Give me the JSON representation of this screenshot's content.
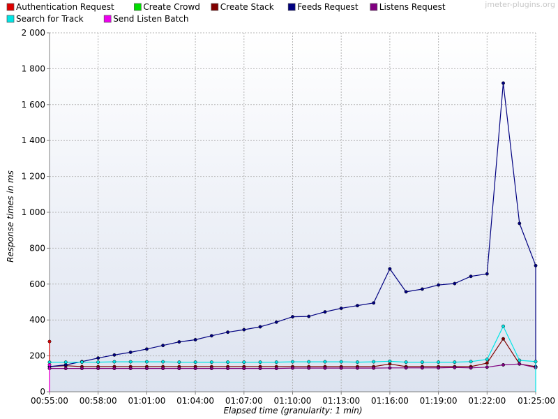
{
  "watermark": "jmeter-plugins.org",
  "chart_data": {
    "type": "line",
    "title": "",
    "xlabel": "Elapsed time (granularity: 1 min)",
    "ylabel": "Response times in ms",
    "ylim": [
      0,
      2000
    ],
    "y_ticks": [
      0,
      200,
      400,
      600,
      800,
      1000,
      1200,
      1400,
      1600,
      1800,
      2000
    ],
    "y_tick_labels": [
      "0",
      "200",
      "400",
      "600",
      "800",
      "1 000",
      "1 200",
      "1 400",
      "1 600",
      "1 800",
      "2 000"
    ],
    "x_range_min": [
      55,
      85
    ],
    "x_ticks": [
      55,
      58,
      61,
      64,
      67,
      70,
      73,
      76,
      79,
      82,
      85
    ],
    "x_tick_labels": [
      "00:55:00",
      "00:58:00",
      "01:01:00",
      "01:04:00",
      "01:07:00",
      "01:10:00",
      "01:13:00",
      "01:16:00",
      "01:19:00",
      "01:22:00",
      "01:25:00"
    ],
    "grid": true,
    "legend_position": "top",
    "series": [
      {
        "name": "Authentication Request",
        "color": "#dd0000",
        "points": [
          [
            55,
            280
          ],
          [
            55,
            0
          ]
        ]
      },
      {
        "name": "Create Crowd",
        "color": "#00dd00",
        "points": []
      },
      {
        "name": "Create Stack",
        "color": "#800000",
        "points": [
          [
            55,
            140
          ],
          [
            56,
            145
          ],
          [
            57,
            140
          ],
          [
            58,
            140
          ],
          [
            59,
            140
          ],
          [
            60,
            140
          ],
          [
            61,
            140
          ],
          [
            62,
            140
          ],
          [
            63,
            140
          ],
          [
            64,
            140
          ],
          [
            65,
            140
          ],
          [
            66,
            140
          ],
          [
            67,
            140
          ],
          [
            68,
            140
          ],
          [
            69,
            140
          ],
          [
            70,
            140
          ],
          [
            71,
            140
          ],
          [
            72,
            140
          ],
          [
            73,
            140
          ],
          [
            74,
            140
          ],
          [
            75,
            140
          ],
          [
            76,
            155
          ],
          [
            77,
            140
          ],
          [
            78,
            140
          ],
          [
            79,
            140
          ],
          [
            80,
            140
          ],
          [
            81,
            140
          ],
          [
            82,
            160
          ],
          [
            83,
            295
          ],
          [
            84,
            155
          ],
          [
            85,
            140
          ]
        ]
      },
      {
        "name": "Feeds Request",
        "color": "#000080",
        "points": [
          [
            55,
            140
          ],
          [
            56,
            150
          ],
          [
            57,
            168
          ],
          [
            58,
            188
          ],
          [
            59,
            205
          ],
          [
            60,
            220
          ],
          [
            61,
            238
          ],
          [
            62,
            258
          ],
          [
            63,
            278
          ],
          [
            64,
            290
          ],
          [
            65,
            312
          ],
          [
            66,
            332
          ],
          [
            67,
            346
          ],
          [
            68,
            362
          ],
          [
            69,
            388
          ],
          [
            70,
            418
          ],
          [
            71,
            420
          ],
          [
            72,
            445
          ],
          [
            73,
            465
          ],
          [
            74,
            480
          ],
          [
            75,
            495
          ],
          [
            76,
            685
          ],
          [
            77,
            557
          ],
          [
            78,
            572
          ],
          [
            79,
            595
          ],
          [
            80,
            603
          ],
          [
            81,
            643
          ],
          [
            82,
            657
          ],
          [
            83,
            1720
          ],
          [
            84,
            938
          ],
          [
            85,
            703
          ],
          [
            85,
            140
          ]
        ]
      },
      {
        "name": "Listens Request",
        "color": "#800080",
        "points": [
          [
            55,
            130
          ],
          [
            56,
            130
          ],
          [
            57,
            130
          ],
          [
            58,
            130
          ],
          [
            59,
            130
          ],
          [
            60,
            130
          ],
          [
            61,
            130
          ],
          [
            62,
            130
          ],
          [
            63,
            130
          ],
          [
            64,
            130
          ],
          [
            65,
            130
          ],
          [
            66,
            130
          ],
          [
            67,
            130
          ],
          [
            68,
            130
          ],
          [
            69,
            130
          ],
          [
            70,
            132
          ],
          [
            71,
            132
          ],
          [
            72,
            132
          ],
          [
            73,
            132
          ],
          [
            74,
            132
          ],
          [
            75,
            132
          ],
          [
            76,
            133
          ],
          [
            77,
            133
          ],
          [
            78,
            133
          ],
          [
            79,
            133
          ],
          [
            80,
            135
          ],
          [
            81,
            133
          ],
          [
            82,
            137
          ],
          [
            83,
            150
          ],
          [
            84,
            155
          ],
          [
            85,
            135
          ]
        ]
      },
      {
        "name": "Search for Track",
        "color": "#00e5e5",
        "points": [
          [
            55,
            165
          ],
          [
            56,
            165
          ],
          [
            57,
            165
          ],
          [
            58,
            165
          ],
          [
            59,
            167
          ],
          [
            60,
            167
          ],
          [
            61,
            167
          ],
          [
            62,
            167
          ],
          [
            63,
            165
          ],
          [
            64,
            165
          ],
          [
            65,
            165
          ],
          [
            66,
            165
          ],
          [
            67,
            165
          ],
          [
            68,
            165
          ],
          [
            69,
            165
          ],
          [
            70,
            167
          ],
          [
            71,
            167
          ],
          [
            72,
            167
          ],
          [
            73,
            167
          ],
          [
            74,
            165
          ],
          [
            75,
            167
          ],
          [
            76,
            170
          ],
          [
            77,
            165
          ],
          [
            78,
            165
          ],
          [
            79,
            165
          ],
          [
            80,
            165
          ],
          [
            81,
            168
          ],
          [
            82,
            180
          ],
          [
            83,
            365
          ],
          [
            84,
            175
          ],
          [
            85,
            168
          ],
          [
            85,
            0
          ]
        ]
      },
      {
        "name": "Send Listen Batch",
        "color": "#ee00ee",
        "points": [
          [
            55,
            150
          ],
          [
            55,
            0
          ]
        ]
      }
    ]
  }
}
